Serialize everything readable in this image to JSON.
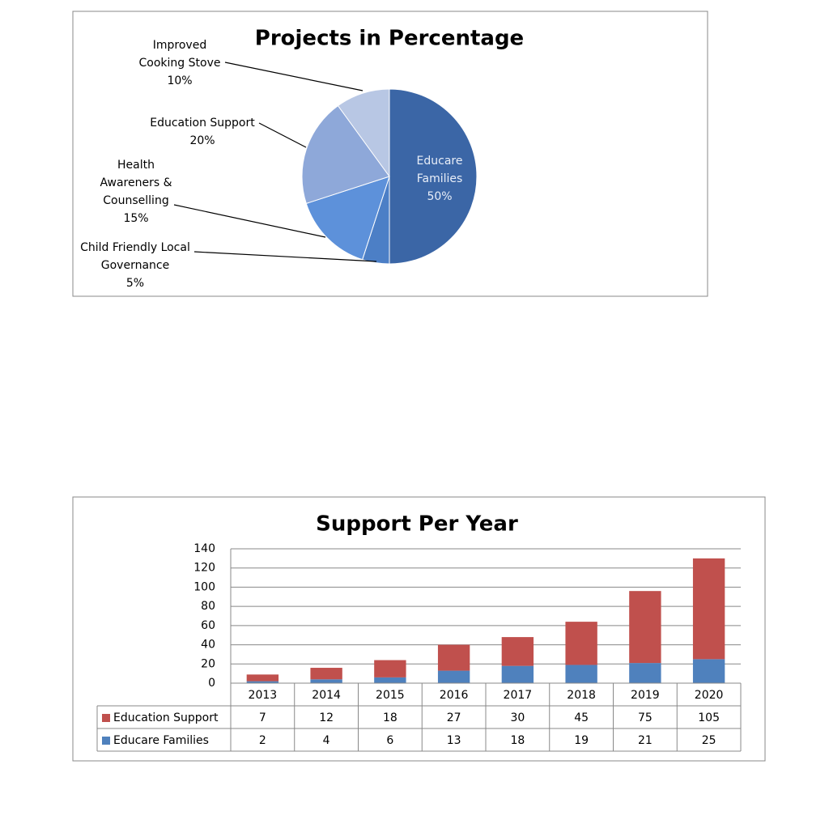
{
  "chart_data": [
    {
      "type": "pie",
      "title": "Projects  in Percentage",
      "categories": [
        "Educare Families",
        "Child Friendly Local Governance",
        "Health Awareners & Counselling",
        "Education Support",
        "Improved Cooking Stove"
      ],
      "values": [
        50,
        5,
        15,
        20,
        10
      ],
      "value_labels": [
        "50%",
        "5%",
        "15%",
        "20%",
        "10%"
      ],
      "colors": [
        "#3b66a6",
        "#4c7fc6",
        "#5d91da",
        "#8ea8d9",
        "#b8c7e4"
      ]
    },
    {
      "type": "stacked_bar",
      "title": "Support Per Year",
      "categories": [
        "2013",
        "2014",
        "2015",
        "2016",
        "2017",
        "2018",
        "2019",
        "2020"
      ],
      "series": [
        {
          "name": "Education Support",
          "color": "#c0504d",
          "values": [
            7,
            12,
            18,
            27,
            30,
            45,
            75,
            105
          ]
        },
        {
          "name": "Educare Families",
          "color": "#4f81bd",
          "values": [
            2,
            4,
            6,
            13,
            18,
            19,
            21,
            25
          ]
        }
      ],
      "ylim": [
        0,
        140
      ],
      "yticks": [
        0,
        20,
        40,
        60,
        80,
        100,
        120,
        140
      ],
      "grid": true,
      "data_table": true
    }
  ]
}
